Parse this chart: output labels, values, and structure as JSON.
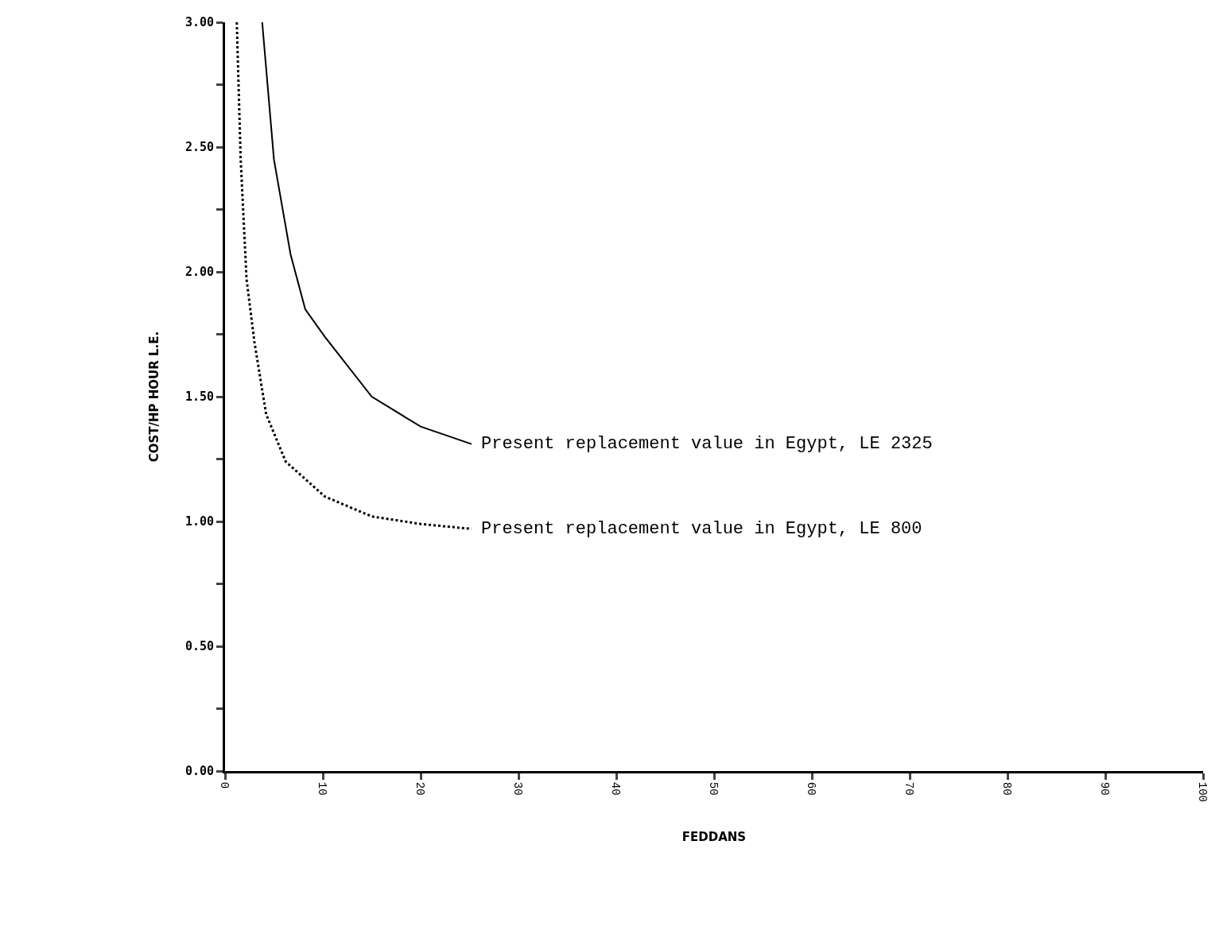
{
  "chart_data": {
    "type": "line",
    "xlabel": "FEDDANS",
    "ylabel": "COST/HP HOUR L.E.",
    "xlim": [
      0,
      100
    ],
    "xticks": [
      0,
      10,
      20,
      30,
      40,
      50,
      60,
      70,
      80,
      90,
      100
    ],
    "ylim": [
      0,
      3
    ],
    "yticks": [
      {
        "value": 0,
        "label": "0.00"
      },
      {
        "value": 0.25,
        "label": null
      },
      {
        "value": 0.5,
        "label": "0.50"
      },
      {
        "value": 0.75,
        "label": null
      },
      {
        "value": 1,
        "label": "1.00"
      },
      {
        "value": 1.25,
        "label": null
      },
      {
        "value": 1.5,
        "label": "1.50"
      },
      {
        "value": 1.75,
        "label": null
      },
      {
        "value": 2,
        "label": "2.00"
      },
      {
        "value": 2.25,
        "label": null
      },
      {
        "value": 2.5,
        "label": "2.50"
      },
      {
        "value": 2.75,
        "label": null
      },
      {
        "value": 3,
        "label": "3.00"
      }
    ],
    "grid": false,
    "marker": "none",
    "series": [
      {
        "color": "#000000",
        "line_style": "solid",
        "x": [
          3.8,
          5,
          6.7,
          8.2,
          10.2,
          15,
          20,
          25.2
        ],
        "values": [
          3.0,
          2.45,
          2.07,
          1.85,
          1.74,
          1.5,
          1.38,
          1.31
        ]
      },
      {
        "color": "#000000",
        "line_style": "dotted",
        "x": [
          1.2,
          1.6,
          2.2,
          3.0,
          4.2,
          6.2,
          10.2,
          15,
          20,
          25.2
        ],
        "values": [
          3.0,
          2.45,
          1.97,
          1.72,
          1.43,
          1.24,
          1.1,
          1.02,
          0.99,
          0.97
        ]
      }
    ],
    "annotations": [
      {
        "text": "Present replacement value in Egypt, LE 2325",
        "x": 25.2,
        "y": 1.31
      },
      {
        "text": "Present replacement value in Egypt, LE 800",
        "x": 25.2,
        "y": 0.97
      }
    ]
  }
}
